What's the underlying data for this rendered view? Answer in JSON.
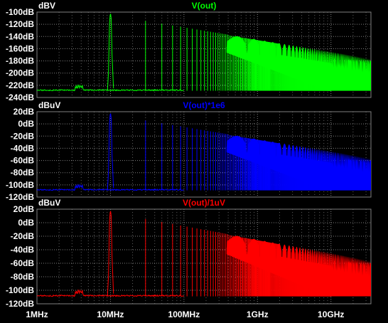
{
  "chart_data": [
    {
      "type": "line",
      "unit": "dBV",
      "title": "V(out)",
      "color": "#00ff00",
      "ylim": [
        -240,
        -100
      ],
      "yticks": [
        "-100dB",
        "-120dB",
        "-140dB",
        "-160dB",
        "-180dB",
        "-200dB",
        "-220dB",
        "-240dB"
      ],
      "y_tick_values": [
        -100,
        -120,
        -140,
        -160,
        -180,
        -200,
        -220,
        -240
      ],
      "noise_floor": -229,
      "fundamental_peak": -103
    },
    {
      "type": "line",
      "unit": "dBuV",
      "title": "V(out)*1e6",
      "color": "#0000ff",
      "ylim": [
        -120,
        20
      ],
      "yticks": [
        "20dB",
        "0dB",
        "-20dB",
        "-40dB",
        "-60dB",
        "-80dB",
        "-100dB",
        "-120dB"
      ],
      "y_tick_values": [
        20,
        0,
        -20,
        -40,
        -60,
        -80,
        -100,
        -120
      ],
      "noise_floor": -109,
      "fundamental_peak": 17
    },
    {
      "type": "line",
      "unit": "dBuV",
      "title": "V(out)/1uV",
      "color": "#ff0000",
      "ylim": [
        -120,
        20
      ],
      "yticks": [
        "20dB",
        "0dB",
        "-20dB",
        "-40dB",
        "-60dB",
        "-80dB",
        "-100dB",
        "-120dB"
      ],
      "y_tick_values": [
        20,
        0,
        -20,
        -40,
        -60,
        -80,
        -100,
        -120
      ],
      "noise_floor": -109,
      "fundamental_peak": 17
    }
  ],
  "x_axis": {
    "scale": "log",
    "xlim_hz": [
      1000000,
      35000000000
    ],
    "tick_labels": [
      "1MHz",
      "10MHz",
      "100MHz",
      "1GHz",
      "10GHz"
    ],
    "tick_values_hz": [
      1000000,
      10000000,
      100000000,
      1000000000,
      10000000000
    ]
  },
  "style": {
    "background": "#000000",
    "grid": "#808080",
    "axis_text": "#ffffff"
  }
}
